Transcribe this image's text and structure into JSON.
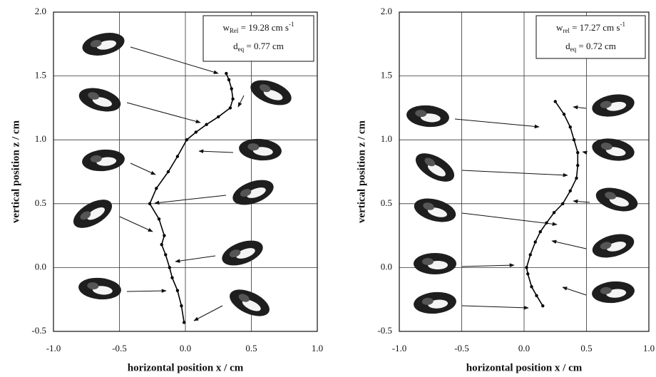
{
  "chart_data": [
    {
      "type": "line",
      "xlabel": "horizontal position x / cm",
      "ylabel": "vertical position z / cm",
      "xlim": [
        -1,
        1
      ],
      "ylim": [
        -0.5,
        2
      ],
      "xticks": [
        {
          "value": -1,
          "label": "-1.0"
        },
        -0.5,
        {
          "value": 0,
          "label": "0.0"
        },
        0.5,
        {
          "value": 1,
          "label": "1.0"
        }
      ],
      "yticks": [
        -0.5,
        {
          "value": 0,
          "label": "0.0"
        },
        0.5,
        {
          "value": 1,
          "label": "1.0"
        },
        1.5,
        {
          "value": 2,
          "label": "2.0"
        }
      ],
      "grid": true,
      "annotations": [
        {
          "symbol": "w",
          "subscript": "Rel",
          "text": " = 19.28 cm s",
          "superscript": "-1"
        },
        {
          "symbol": "d",
          "subscript": "eq",
          "text": " = 0.77 cm"
        }
      ],
      "series": [
        {
          "color": "#000000",
          "x": [
            -0.01,
            -0.03,
            -0.06,
            -0.1,
            -0.12,
            -0.15,
            -0.18,
            -0.16,
            -0.2,
            -0.27,
            -0.22,
            -0.13,
            -0.06,
            0.01,
            0.08,
            0.16,
            0.25,
            0.34,
            0.36,
            0.35,
            0.33,
            0.31
          ],
          "values": [
            -0.43,
            -0.3,
            -0.18,
            -0.08,
            0.0,
            0.1,
            0.18,
            0.25,
            0.38,
            0.5,
            0.62,
            0.75,
            0.87,
            1.0,
            1.06,
            1.12,
            1.18,
            1.25,
            1.32,
            1.4,
            1.47,
            1.52
          ]
        }
      ]
    },
    {
      "type": "line",
      "xlabel": "horizontal position x / cm",
      "ylabel": "vertical position z / cm",
      "xlim": [
        -1,
        1
      ],
      "ylim": [
        -0.5,
        2
      ],
      "xticks": [
        {
          "value": -1,
          "label": "-1.0"
        },
        -0.5,
        {
          "value": 0,
          "label": "0.0"
        },
        0.5,
        {
          "value": 1,
          "label": "1.0"
        }
      ],
      "yticks": [
        -0.5,
        {
          "value": 0,
          "label": "0.0"
        },
        0.5,
        {
          "value": 1,
          "label": "1.0"
        },
        1.5,
        {
          "value": 2,
          "label": "2.0"
        }
      ],
      "grid": true,
      "annotations": [
        {
          "symbol": "w",
          "subscript": "rel",
          "text": " = 17.27 cm s",
          "superscript": "-1"
        },
        {
          "symbol": "d",
          "subscript": "eq",
          "text": " = 0.72 cm"
        }
      ],
      "series": [
        {
          "color": "#000000",
          "x": [
            0.15,
            0.1,
            0.06,
            0.03,
            0.02,
            0.05,
            0.09,
            0.13,
            0.18,
            0.24,
            0.31,
            0.37,
            0.42,
            0.43,
            0.43,
            0.4,
            0.37,
            0.32,
            0.25
          ],
          "values": [
            -0.3,
            -0.22,
            -0.15,
            -0.05,
            0.0,
            0.1,
            0.2,
            0.28,
            0.35,
            0.43,
            0.5,
            0.6,
            0.7,
            0.8,
            0.9,
            1.0,
            1.1,
            1.2,
            1.3
          ]
        }
      ]
    }
  ]
}
